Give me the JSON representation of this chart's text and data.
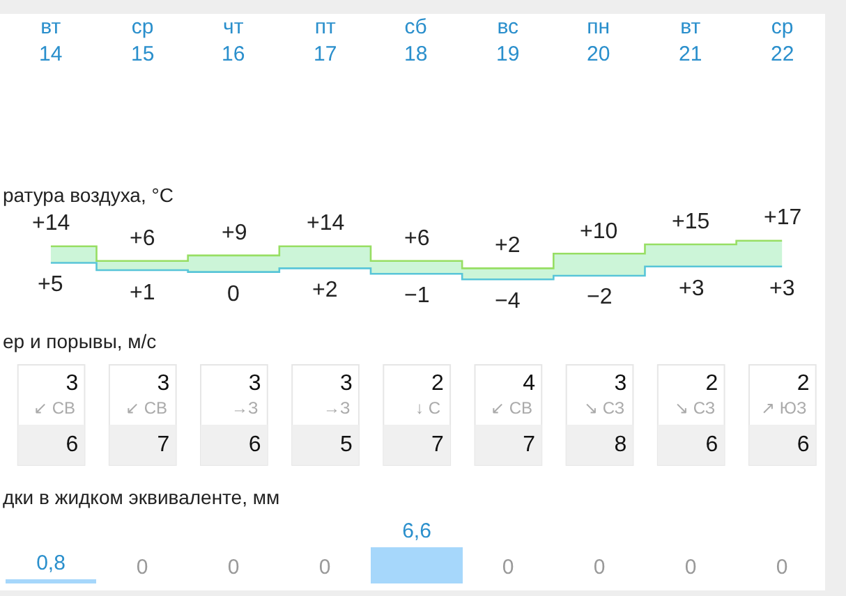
{
  "chart_data": [
    {
      "type": "step",
      "title": "ратура воздуха, °C",
      "categories": [
        "вт\n14",
        "ср\n15",
        "чт\n16",
        "пт\n17",
        "сб\n18",
        "вс\n19",
        "пн\n20",
        "вт\n21",
        "ср\n22"
      ],
      "series": [
        {
          "color": "#97de63",
          "values": [
            14,
            6,
            9,
            14,
            6,
            2,
            10,
            15,
            17
          ],
          "lower": [
            5,
            1,
            0,
            2,
            -1,
            -4,
            -2,
            3,
            3
          ],
          "upper": [
            14,
            6,
            9,
            14,
            6,
            2,
            10,
            15,
            17
          ],
          "value_labels": [
            "+14",
            "+6",
            "+9",
            "+14",
            "+6",
            "+2",
            "+10",
            "+15",
            "+17"
          ]
        },
        {
          "color": "#58c5d8",
          "values": [
            5,
            1,
            0,
            2,
            -1,
            -4,
            -2,
            3,
            3
          ],
          "value_labels": [
            "+5",
            "+1",
            "0",
            "+2",
            "−1",
            "−4",
            "−2",
            "+3",
            "+3"
          ]
        }
      ]
    },
    {
      "type": "other",
      "title": "ер и порывы, м/с",
      "data_labels": true,
      "categories": [
        "↙ СВ",
        "↙ СВ",
        "→З",
        "→З",
        "↓ С",
        "↙ СВ",
        "↘ СЗ",
        "↘ СЗ",
        "↗ ЮЗ"
      ],
      "series": [
        {
          "values": [
            3,
            3,
            3,
            3,
            2,
            4,
            3,
            2,
            2
          ]
        },
        {
          "values": [
            6,
            7,
            6,
            5,
            7,
            7,
            8,
            6,
            6
          ]
        }
      ]
    },
    {
      "type": "bar",
      "title": "дки в жидком эквиваленте, мм",
      "categories": [
        null,
        null,
        null,
        null,
        null,
        null,
        null,
        null,
        null
      ],
      "values": [
        0.8,
        0,
        0,
        0,
        6.6,
        0,
        0,
        0,
        0
      ],
      "value_labels": [
        "0,8",
        "0",
        "0",
        "0",
        "6,6",
        "0",
        "0",
        "0",
        "0"
      ],
      "color": "#a6d7fb"
    }
  ]
}
